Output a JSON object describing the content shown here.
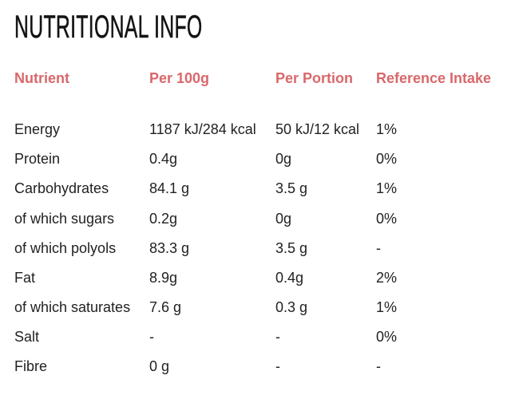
{
  "title": "NUTRITIONAL INFO",
  "accent_color": "#d9686b",
  "headers": [
    "Nutrient",
    "Per 100g",
    "Per Portion",
    "Reference Intake"
  ],
  "rows": [
    [
      "Energy",
      "1187 kJ/284 kcal",
      "50 kJ/12 kcal",
      "1%"
    ],
    [
      "Protein",
      "0.4g",
      "0g",
      "0%"
    ],
    [
      "Carbohydrates",
      "84.1 g",
      "3.5 g",
      "1%"
    ],
    [
      "of which sugars",
      "0.2g",
      "0g",
      "0%"
    ],
    [
      "of which polyols",
      "83.3 g",
      "3.5 g",
      "-"
    ],
    [
      "Fat",
      "8.9g",
      "0.4g",
      "2%"
    ],
    [
      "of which saturates",
      "7.6 g",
      "0.3 g",
      "1%"
    ],
    [
      "Salt",
      "-",
      "-",
      "0%"
    ],
    [
      "Fibre",
      "0 g",
      "-",
      "-"
    ]
  ]
}
